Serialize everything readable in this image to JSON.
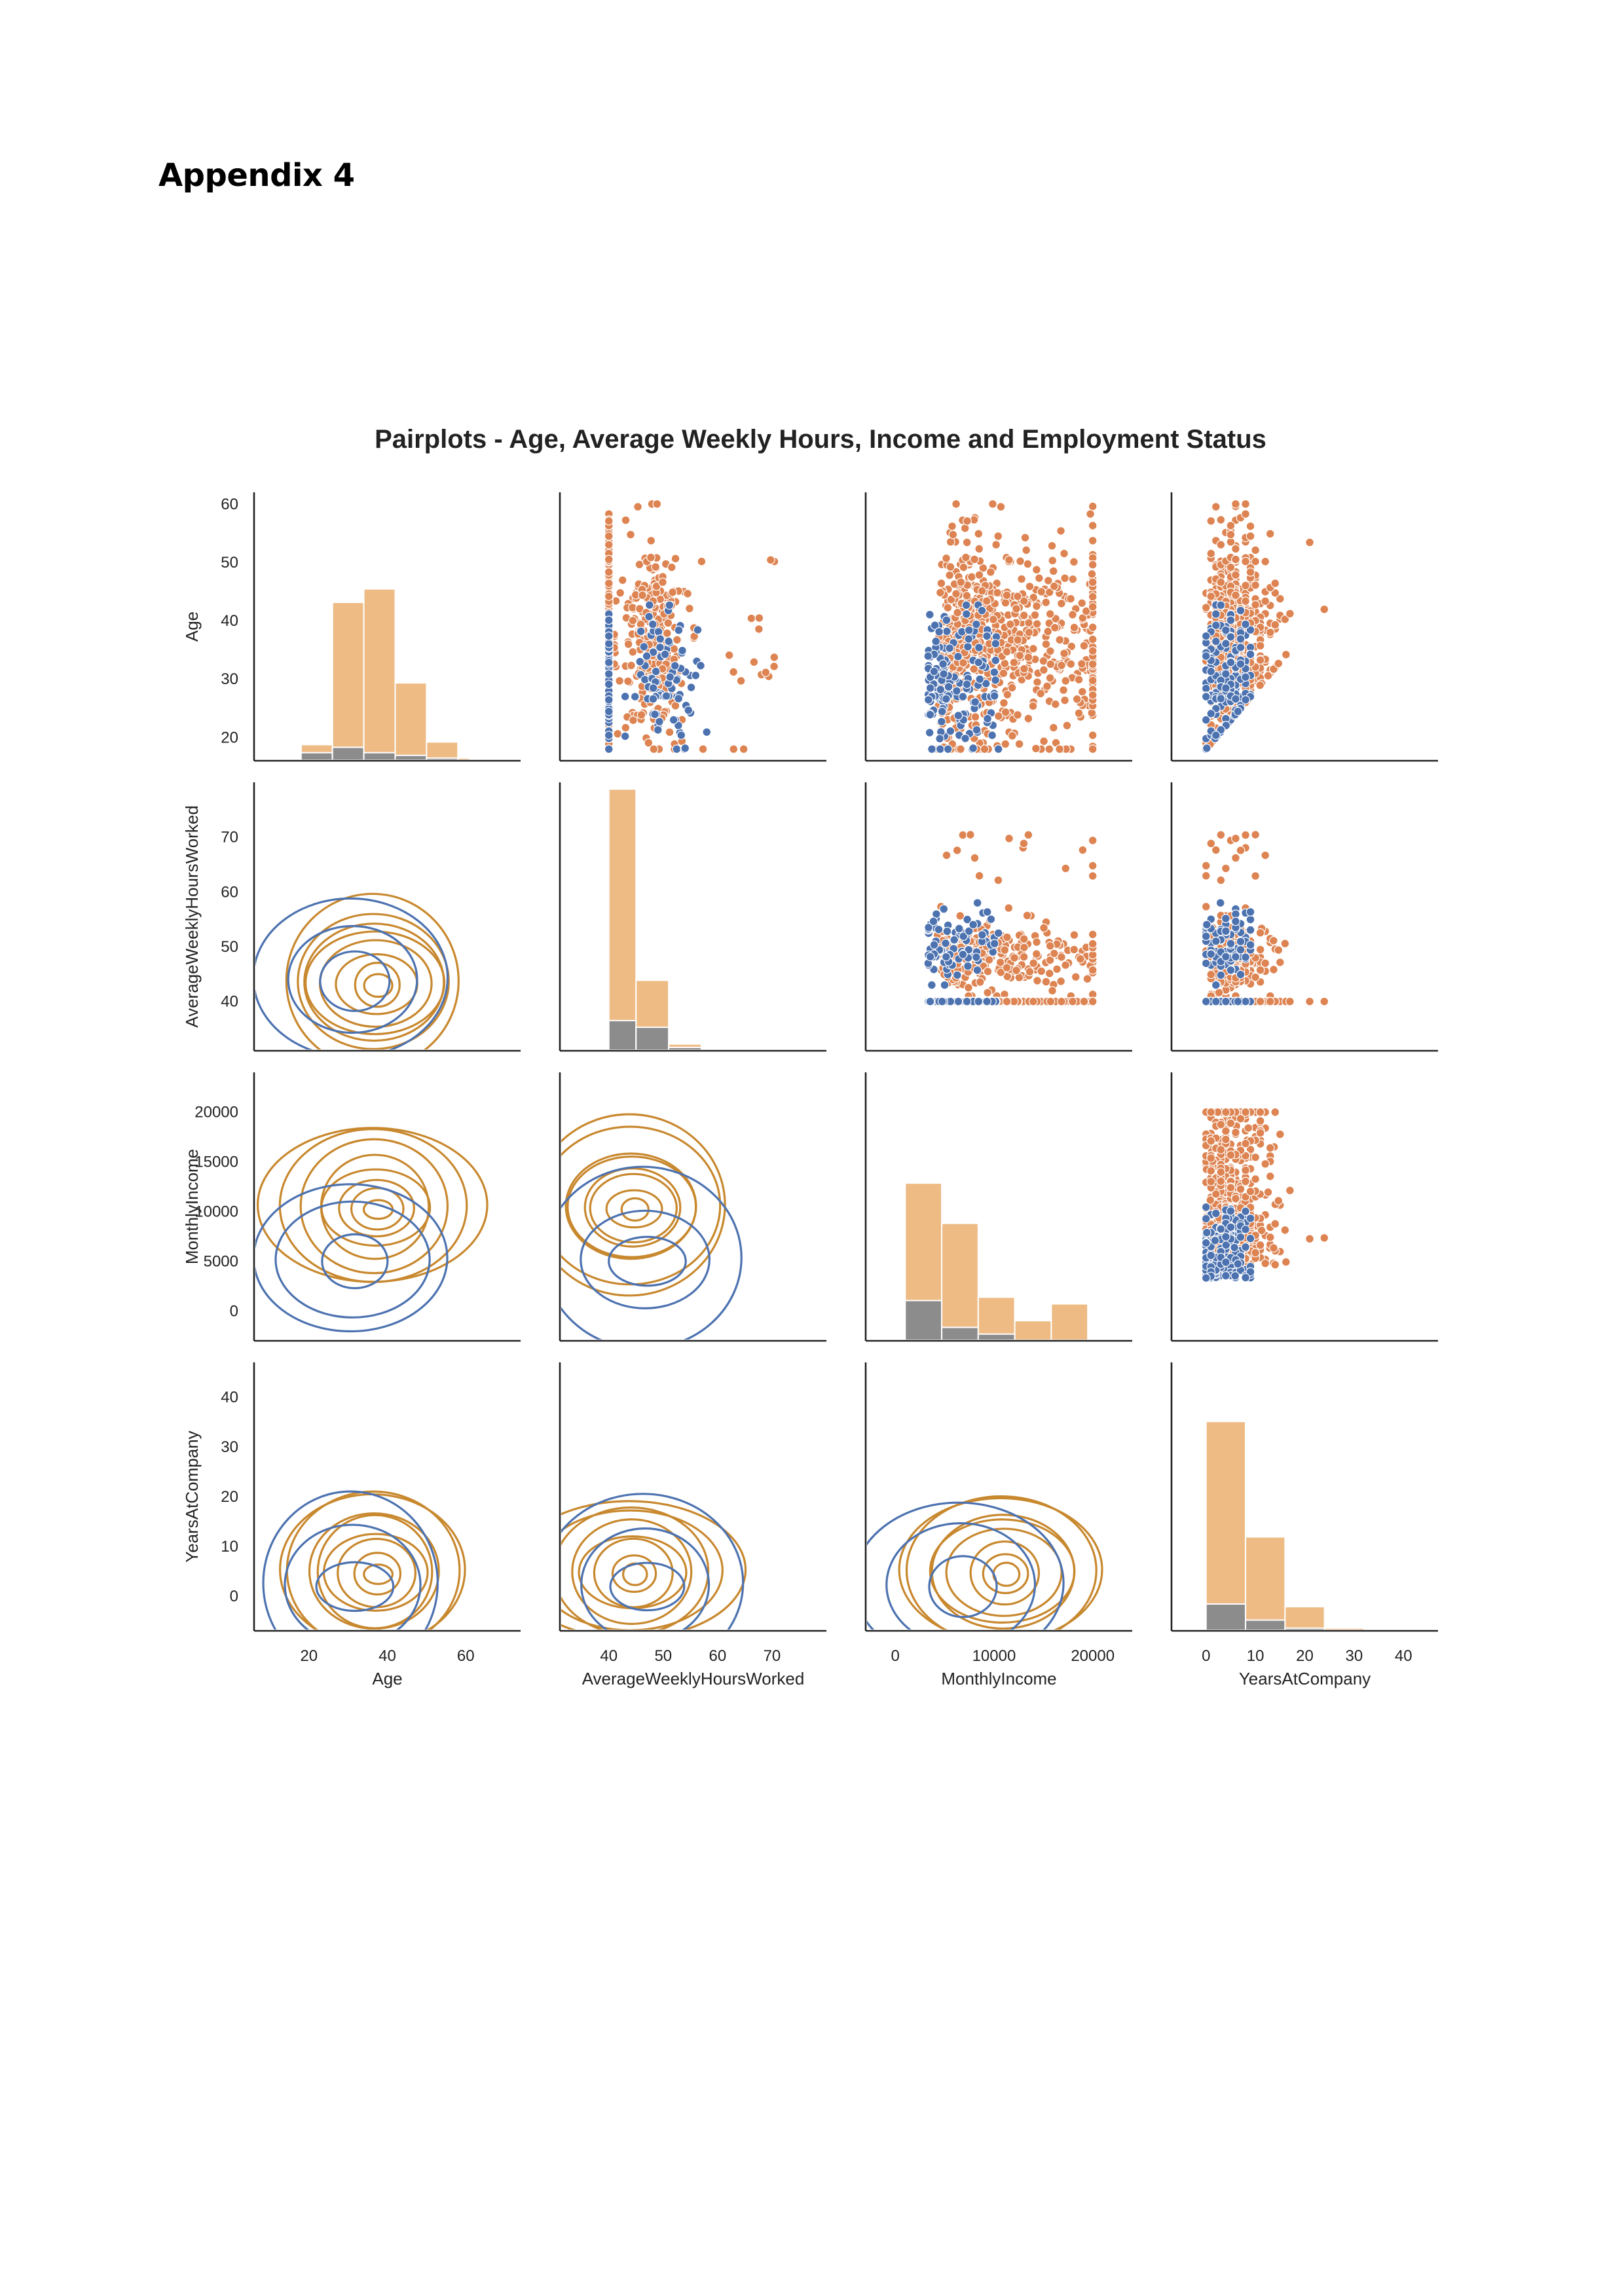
{
  "page": {
    "heading": "Appendix 4"
  },
  "colors": {
    "left": "#4c72b0",
    "stayed": "#dd8452",
    "left_hist": "#8c8c8c",
    "stayed_hist": "#eebb85"
  },
  "chart_data": {
    "type": "pairplot",
    "title": "Pairplots - Age, Average Weekly Hours, Income and Employment Status",
    "variables": [
      "Age",
      "AverageWeeklyHoursWorked",
      "MonthlyIncome",
      "YearsAtCompany"
    ],
    "ranges": {
      "Age": [
        16,
        62
      ],
      "AverageWeeklyHoursWorked": [
        31,
        80
      ],
      "MonthlyIncome": [
        -3000,
        24000
      ],
      "YearsAtCompany": [
        -7,
        47
      ]
    },
    "ticks": {
      "Age": [
        20,
        30,
        40,
        50,
        60
      ],
      "AverageWeeklyHoursWorked": [
        40,
        50,
        60,
        70
      ],
      "MonthlyIncome": [
        0,
        5000,
        10000,
        15000,
        20000
      ],
      "YearsAtCompany": [
        0,
        10,
        20,
        30,
        40
      ]
    },
    "x_ticks": {
      "Age": [
        20,
        40,
        60
      ],
      "AverageWeeklyHoursWorked": [
        40,
        50,
        60,
        70
      ],
      "MonthlyIncome": [
        0,
        10000,
        20000
      ],
      "YearsAtCompany": [
        0,
        10,
        20,
        30,
        40
      ]
    },
    "x_ranges": {
      "Age": [
        6,
        74
      ]
    },
    "histograms": {
      "Age": {
        "bins": [
          [
            18,
            26
          ],
          [
            26,
            34
          ],
          [
            34,
            42
          ],
          [
            42,
            50
          ],
          [
            50,
            58
          ],
          [
            58,
            61
          ]
        ],
        "total": [
          6,
          59,
          64,
          29,
          7,
          1
        ],
        "left": [
          3,
          5,
          3,
          2,
          1,
          0
        ],
        "ymax": 100
      },
      "AverageWeeklyHoursWorked": {
        "bins": [
          [
            40,
            45
          ],
          [
            45,
            51
          ],
          [
            51,
            57
          ],
          [
            57,
            63
          ],
          [
            63,
            71
          ]
        ],
        "total": [
          78,
          21,
          2,
          0.3,
          0.2
        ],
        "left": [
          9,
          7,
          1,
          0,
          0
        ],
        "ymax": 80
      },
      "MonthlyIncome": {
        "bins": [
          [
            1000,
            4700
          ],
          [
            4700,
            8400
          ],
          [
            8400,
            12100
          ],
          [
            12100,
            15800
          ],
          [
            15800,
            19500
          ]
        ],
        "total": [
          47,
          35,
          13,
          6,
          11
        ],
        "left": [
          12,
          4,
          2,
          0,
          0
        ],
        "ymax": 80
      },
      "YearsAtCompany": {
        "bins": [
          [
            0,
            8
          ],
          [
            8,
            16
          ],
          [
            16,
            24
          ],
          [
            24,
            32
          ],
          [
            32,
            40
          ]
        ],
        "total": [
          78,
          35,
          9,
          1,
          0.5
        ],
        "left": [
          10,
          4,
          1,
          0,
          0
        ],
        "ymax": 100
      }
    }
  }
}
